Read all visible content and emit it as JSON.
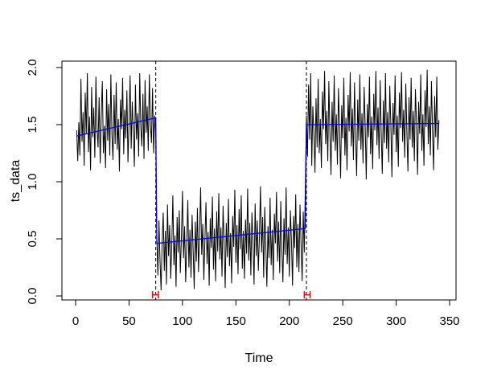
{
  "chart_data": {
    "type": "line",
    "title": "",
    "xlabel": "Time",
    "ylabel": "ts_data",
    "grid": false,
    "legend": "none",
    "x_ticks": [
      0,
      50,
      100,
      150,
      200,
      250,
      300,
      350
    ],
    "y_ticks": [
      0.0,
      0.5,
      1.0,
      1.5,
      2.0
    ],
    "y_tick_labels": [
      "0.0",
      "0.5",
      "1.0",
      "1.5",
      "2.0"
    ],
    "xlim": [
      -12.8,
      356.0
    ],
    "ylim": [
      -0.035,
      2.056
    ],
    "series_color": "#000000",
    "fit_color": "#0000ff",
    "breakpoint_line_color": "#000000",
    "ci_color": "#ff0000",
    "x_start": 1,
    "segments_description": [
      {
        "range": [
          1,
          75
        ],
        "trend_start": 1.4,
        "trend_end": 1.56,
        "noise_range": [
          1.0,
          1.96
        ]
      },
      {
        "range": [
          76,
          215
        ],
        "trend_start": 0.46,
        "trend_end": 0.59,
        "noise_range": [
          0.03,
          0.97
        ]
      },
      {
        "range": [
          216,
          340
        ],
        "trend_start": 1.5,
        "trend_end": 1.51,
        "noise_range": [
          1.0,
          1.98
        ]
      }
    ],
    "fitted_line": {
      "points": [
        [
          1,
          1.4
        ],
        [
          75,
          1.56
        ],
        [
          76,
          0.46
        ],
        [
          215,
          0.59
        ],
        [
          216,
          1.5
        ],
        [
          340,
          1.51
        ]
      ]
    },
    "breakpoints": [
      {
        "time": 75,
        "ci_from": 72,
        "ci_to": 77.5
      },
      {
        "time": 216,
        "ci_from": 214,
        "ci_to": 219.5
      }
    ],
    "ci_level_y": 0.01,
    "ci_cap_top": 0.042,
    "ci_cap_bottom": -0.021,
    "values": [
      1.45,
      1.18,
      1.52,
      1.23,
      1.9,
      1.35,
      1.61,
      1.14,
      1.78,
      1.42,
      1.95,
      1.26,
      1.57,
      1.1,
      1.83,
      1.39,
      1.65,
      1.21,
      1.92,
      1.47,
      1.3,
      1.74,
      1.16,
      1.58,
      1.88,
      1.25,
      1.49,
      1.12,
      1.81,
      1.36,
      1.68,
      1.23,
      1.94,
      1.41,
      1.19,
      1.76,
      1.33,
      1.87,
      1.28,
      1.55,
      1.09,
      1.72,
      1.46,
      1.91,
      1.24,
      1.63,
      1.38,
      1.8,
      1.17,
      1.52,
      1.93,
      1.29,
      1.7,
      1.44,
      1.13,
      1.85,
      1.37,
      1.6,
      1.22,
      1.95,
      1.48,
      1.31,
      1.77,
      1.2,
      1.89,
      1.43,
      1.66,
      1.27,
      1.94,
      1.5,
      1.34,
      1.82,
      1.25,
      1.58,
      1.4,
      0.52,
      0.18,
      0.66,
      0.31,
      0.05,
      0.48,
      0.73,
      0.22,
      0.57,
      0.1,
      0.8,
      0.35,
      0.62,
      0.15,
      0.44,
      0.88,
      0.27,
      0.53,
      0.08,
      0.69,
      0.38,
      0.75,
      0.2,
      0.5,
      0.92,
      0.33,
      0.61,
      0.12,
      0.46,
      0.84,
      0.25,
      0.58,
      0.16,
      0.71,
      0.4,
      0.06,
      0.65,
      0.3,
      0.77,
      0.21,
      0.54,
      0.95,
      0.36,
      0.63,
      0.14,
      0.49,
      0.82,
      0.28,
      0.56,
      0.09,
      0.68,
      0.42,
      0.87,
      0.23,
      0.59,
      0.13,
      0.74,
      0.39,
      0.9,
      0.32,
      0.6,
      0.17,
      0.79,
      0.45,
      0.07,
      0.64,
      0.34,
      0.85,
      0.26,
      0.55,
      0.11,
      0.7,
      0.43,
      0.93,
      0.29,
      0.62,
      0.19,
      0.76,
      0.41,
      0.88,
      0.24,
      0.57,
      0.15,
      0.67,
      0.37,
      0.94,
      0.31,
      0.64,
      0.18,
      0.73,
      0.47,
      0.1,
      0.81,
      0.35,
      0.66,
      0.22,
      0.52,
      0.96,
      0.38,
      0.69,
      0.16,
      0.78,
      0.44,
      0.08,
      0.61,
      0.33,
      0.86,
      0.27,
      0.58,
      0.14,
      0.72,
      0.46,
      0.91,
      0.3,
      0.65,
      0.2,
      0.83,
      0.4,
      0.12,
      0.68,
      0.36,
      0.95,
      0.28,
      0.6,
      0.17,
      0.75,
      0.48,
      0.09,
      0.7,
      0.42,
      0.89,
      0.25,
      0.63,
      0.21,
      0.8,
      0.45,
      0.13,
      0.74,
      0.38,
      0.97,
      1.58,
      1.22,
      1.85,
      1.37,
      1.95,
      1.14,
      1.66,
      1.42,
      1.08,
      1.73,
      1.3,
      1.9,
      1.25,
      1.55,
      1.12,
      1.79,
      1.46,
      1.97,
      1.33,
      1.62,
      1.18,
      1.88,
      1.41,
      1.06,
      1.7,
      1.35,
      1.93,
      1.27,
      1.59,
      1.15,
      1.82,
      1.48,
      1.03,
      1.67,
      1.38,
      1.91,
      1.23,
      1.56,
      1.1,
      1.76,
      1.44,
      1.96,
      1.31,
      1.64,
      1.19,
      1.87,
      1.4,
      1.05,
      1.72,
      1.36,
      1.94,
      1.28,
      1.6,
      1.16,
      1.83,
      1.49,
      1.02,
      1.68,
      1.39,
      1.92,
      1.24,
      1.57,
      1.11,
      1.77,
      1.45,
      1.97,
      1.32,
      1.65,
      1.2,
      1.89,
      1.43,
      1.07,
      1.71,
      1.34,
      1.95,
      1.29,
      1.61,
      1.17,
      1.84,
      1.5,
      1.04,
      1.69,
      1.41,
      1.93,
      1.26,
      1.58,
      1.13,
      1.78,
      1.47,
      1.96,
      1.35,
      1.63,
      1.21,
      1.86,
      1.44,
      1.09,
      1.74,
      1.37,
      1.91,
      1.3,
      1.62,
      1.18,
      1.81,
      1.52,
      1.06,
      1.7,
      1.42,
      1.94,
      1.27,
      1.59,
      1.14,
      1.8,
      1.48,
      1.98,
      1.33,
      1.66,
      1.23,
      1.88,
      1.45,
      1.1,
      1.75,
      1.39,
      1.92,
      1.28,
      1.54
    ]
  }
}
